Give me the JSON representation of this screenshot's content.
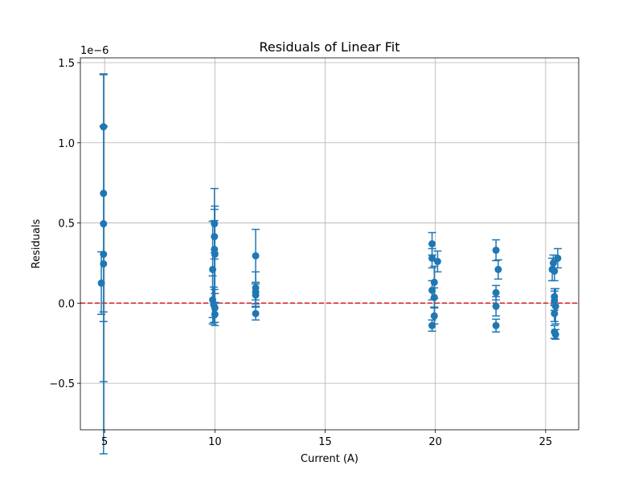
{
  "chart_data": {
    "type": "scatter",
    "title": "Residuals of Linear Fit",
    "xlabel": "Current (A)",
    "ylabel": "Residuals",
    "y_scale_label": "1e−6",
    "xlim": [
      3.9,
      26.5
    ],
    "ylim": [
      -0.79,
      1.53
    ],
    "xticks": [
      5,
      10,
      15,
      20,
      25
    ],
    "xtick_labels": [
      "5",
      "10",
      "15",
      "20",
      "25"
    ],
    "yticks": [
      -0.5,
      0.0,
      0.5,
      1.0,
      1.5
    ],
    "ytick_labels": [
      "−0.5",
      "0.0",
      "0.5",
      "1.0",
      "1.5"
    ],
    "grid": true,
    "reference_line": {
      "y": 0.0,
      "color": "#d62728",
      "style": "dashed"
    },
    "series": [
      {
        "color": "#1f77b4",
        "points": [
          {
            "x": 4.85,
            "y": 0.125,
            "err": 0.195
          },
          {
            "x": 4.95,
            "y": 0.685,
            "err": 0.74
          },
          {
            "x": 4.95,
            "y": 0.495,
            "err": 0.61
          },
          {
            "x": 4.95,
            "y": 0.305,
            "err": 0.795
          },
          {
            "x": 4.95,
            "y": 0.245,
            "err": 1.185
          },
          {
            "x": 4.95,
            "y": 1.1,
            "err": 0.0
          },
          {
            "x": 9.9,
            "y": 0.21,
            "err": 0.3
          },
          {
            "x": 9.9,
            "y": 0.02,
            "err": 0.15
          },
          {
            "x": 9.95,
            "y": -0.01,
            "err": 0.11
          },
          {
            "x": 9.98,
            "y": 0.495,
            "err": 0.22
          },
          {
            "x": 9.98,
            "y": 0.415,
            "err": 0.1
          },
          {
            "x": 9.98,
            "y": 0.335,
            "err": 0.25
          },
          {
            "x": 10.0,
            "y": 0.305,
            "err": 0.3
          },
          {
            "x": 10.0,
            "y": -0.03,
            "err": 0.09
          },
          {
            "x": 10.0,
            "y": -0.07,
            "err": 0.07
          },
          {
            "x": 11.85,
            "y": 0.295,
            "err": 0.165
          },
          {
            "x": 11.85,
            "y": 0.095,
            "err": 0.1
          },
          {
            "x": 11.85,
            "y": 0.07,
            "err": 0.05
          },
          {
            "x": 11.85,
            "y": 0.05,
            "err": 0.07
          },
          {
            "x": 11.85,
            "y": -0.065,
            "err": 0.04
          },
          {
            "x": 19.85,
            "y": 0.37,
            "err": 0.07
          },
          {
            "x": 19.85,
            "y": 0.28,
            "err": 0.06
          },
          {
            "x": 19.85,
            "y": 0.08,
            "err": 0.06
          },
          {
            "x": 19.85,
            "y": -0.14,
            "err": 0.035
          },
          {
            "x": 19.95,
            "y": 0.13,
            "err": 0.1
          },
          {
            "x": 19.95,
            "y": 0.035,
            "err": 0.06
          },
          {
            "x": 19.95,
            "y": -0.08,
            "err": 0.05
          },
          {
            "x": 20.1,
            "y": 0.26,
            "err": 0.065
          },
          {
            "x": 22.75,
            "y": 0.33,
            "err": 0.065
          },
          {
            "x": 22.75,
            "y": 0.065,
            "err": 0.045
          },
          {
            "x": 22.75,
            "y": -0.02,
            "err": 0.06
          },
          {
            "x": 22.75,
            "y": -0.14,
            "err": 0.04
          },
          {
            "x": 22.85,
            "y": 0.21,
            "err": 0.06
          },
          {
            "x": 25.3,
            "y": 0.21,
            "err": 0.07
          },
          {
            "x": 25.35,
            "y": 0.25,
            "err": 0.05
          },
          {
            "x": 25.4,
            "y": 0.2,
            "err": 0.06
          },
          {
            "x": 25.4,
            "y": 0.04,
            "err": 0.05
          },
          {
            "x": 25.4,
            "y": 0.015,
            "err": 0.06
          },
          {
            "x": 25.4,
            "y": -0.065,
            "err": 0.05
          },
          {
            "x": 25.4,
            "y": -0.18,
            "err": 0.04
          },
          {
            "x": 25.45,
            "y": -0.195,
            "err": 0.03
          },
          {
            "x": 25.45,
            "y": -0.02,
            "err": 0.11
          },
          {
            "x": 25.55,
            "y": 0.28,
            "err": 0.06
          }
        ]
      }
    ]
  }
}
